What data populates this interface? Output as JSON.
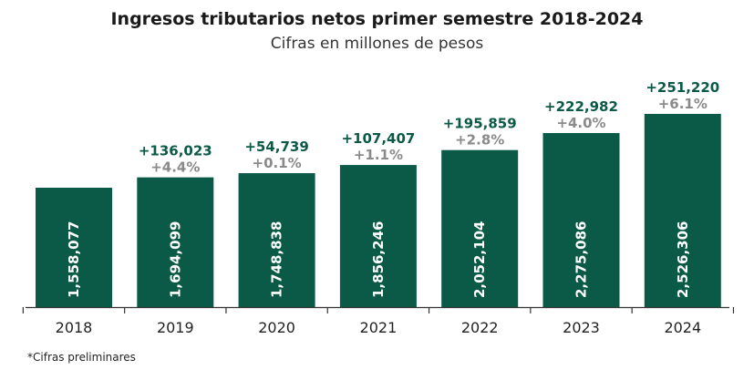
{
  "title": "Ingresos tributarios netos primer semestre 2018-2024",
  "subtitle": "Cifras en millones de pesos",
  "footnote": "*Cifras preliminares",
  "colors": {
    "bar": "#0b5a47",
    "increase": "#0b5a47",
    "percent": "#8a8a8a",
    "value_text": "#ffffff",
    "axis": "#333333"
  },
  "chart_data": {
    "type": "bar",
    "categories": [
      "2018",
      "2019",
      "2020",
      "2021",
      "2022",
      "2023",
      "2024"
    ],
    "values": [
      1558077,
      1694099,
      1748838,
      1856246,
      2052104,
      2275086,
      2526306
    ],
    "value_labels": [
      "1,558,077",
      "1,694,099",
      "1,748,838",
      "1,856,246",
      "2,052,104",
      "2,275,086",
      "2,526,306"
    ],
    "increase_labels": [
      "",
      "+136,023",
      "+54,739",
      "+107,407",
      "+195,859",
      "+222,982",
      "+251,220"
    ],
    "percent_labels": [
      "",
      "+4.4%",
      "+0.1%",
      "+1.1%",
      "+2.8%",
      "+4.0%",
      "+6.1%"
    ],
    "title": "Ingresos tributarios netos primer semestre 2018-2024",
    "subtitle": "Cifras en millones de pesos",
    "xlabel": "",
    "ylabel": "",
    "grid": false,
    "legend": "none"
  }
}
